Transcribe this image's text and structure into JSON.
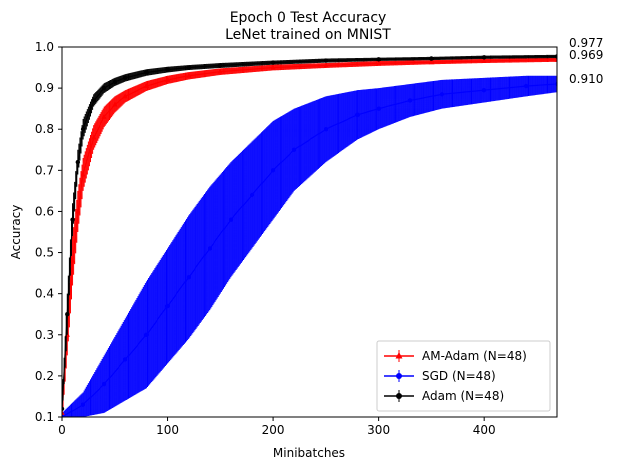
{
  "chart_data": {
    "type": "line",
    "title": "Epoch 0 Test Accuracy",
    "subtitle": "LeNet trained on MNIST",
    "xlabel": "Minibatches",
    "ylabel": "Accuracy",
    "xlim": [
      0,
      469
    ],
    "ylim": [
      0.1,
      1.0
    ],
    "xticks": [
      0,
      100,
      200,
      300,
      400
    ],
    "yticks": [
      0.1,
      0.2,
      0.3,
      0.4,
      0.5,
      0.6,
      0.7,
      0.8,
      0.9,
      1.0
    ],
    "ytick_labels": [
      "0.1",
      "0.2",
      "0.3",
      "0.4",
      "0.5",
      "0.6",
      "0.7",
      "0.8",
      "0.9",
      "1.0"
    ],
    "grid": false,
    "legend_position": "bottom-right",
    "error_bars": true,
    "series": [
      {
        "name": "AM-Adam (N=48)",
        "color": "#ff0000",
        "marker": "triangle",
        "final_label": "0.969",
        "x": [
          0,
          5,
          10,
          15,
          20,
          30,
          40,
          50,
          60,
          80,
          100,
          120,
          150,
          200,
          250,
          300,
          350,
          400,
          469
        ],
        "y": [
          0.11,
          0.3,
          0.48,
          0.6,
          0.69,
          0.78,
          0.83,
          0.86,
          0.88,
          0.905,
          0.92,
          0.93,
          0.94,
          0.95,
          0.955,
          0.96,
          0.963,
          0.966,
          0.969
        ],
        "err": [
          0.02,
          0.05,
          0.06,
          0.05,
          0.04,
          0.03,
          0.025,
          0.02,
          0.015,
          0.012,
          0.01,
          0.009,
          0.008,
          0.007,
          0.006,
          0.006,
          0.005,
          0.005,
          0.005
        ]
      },
      {
        "name": "SGD (N=48)",
        "color": "#0000ff",
        "marker": "circle",
        "final_label": "0.910",
        "x": [
          0,
          20,
          40,
          60,
          80,
          100,
          120,
          140,
          160,
          180,
          200,
          220,
          250,
          280,
          300,
          330,
          360,
          400,
          440,
          469
        ],
        "y": [
          0.1,
          0.13,
          0.18,
          0.24,
          0.3,
          0.37,
          0.44,
          0.51,
          0.58,
          0.64,
          0.7,
          0.75,
          0.8,
          0.835,
          0.85,
          0.87,
          0.885,
          0.895,
          0.905,
          0.91
        ],
        "err": [
          0.01,
          0.03,
          0.07,
          0.1,
          0.13,
          0.14,
          0.15,
          0.15,
          0.14,
          0.13,
          0.12,
          0.1,
          0.08,
          0.06,
          0.05,
          0.04,
          0.035,
          0.03,
          0.025,
          0.02
        ]
      },
      {
        "name": "Adam (N=48)",
        "color": "#000000",
        "marker": "circle",
        "final_label": "0.977",
        "x": [
          0,
          5,
          10,
          15,
          20,
          30,
          40,
          50,
          60,
          80,
          100,
          120,
          150,
          200,
          250,
          300,
          350,
          400,
          469
        ],
        "y": [
          0.12,
          0.35,
          0.58,
          0.72,
          0.8,
          0.87,
          0.9,
          0.915,
          0.925,
          0.938,
          0.945,
          0.95,
          0.955,
          0.962,
          0.967,
          0.97,
          0.972,
          0.975,
          0.977
        ],
        "err": [
          0.02,
          0.05,
          0.04,
          0.03,
          0.025,
          0.015,
          0.012,
          0.01,
          0.009,
          0.008,
          0.007,
          0.006,
          0.006,
          0.005,
          0.005,
          0.004,
          0.004,
          0.004,
          0.004
        ]
      }
    ]
  }
}
